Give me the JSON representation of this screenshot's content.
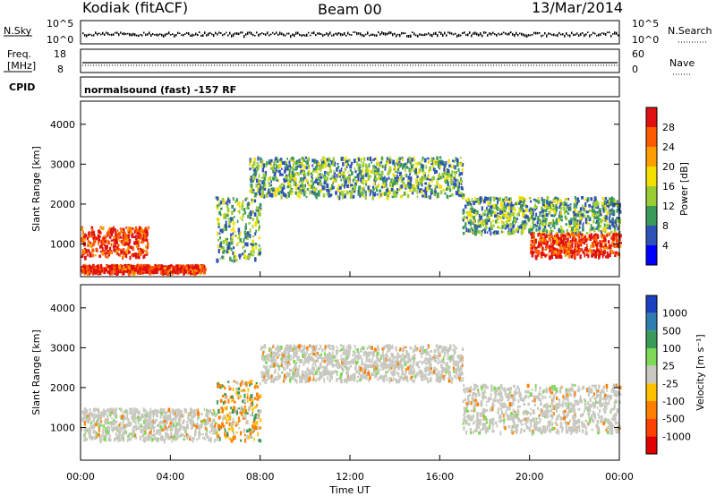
{
  "header": {
    "station": "Kodiak (fitACF)",
    "beam": "Beam 00",
    "date": "13/Mar/2014"
  },
  "top_panels": {
    "nsky_label": "N.Sky",
    "nsky_ticks": [
      "10^5",
      "10^0"
    ],
    "nsearch_label": "N.Search",
    "nsearch_ticks": [
      "10^5",
      "10^0"
    ],
    "freq_label": "Freq.",
    "freq_unit": "[MHz]",
    "freq_ticks": [
      "18",
      "8"
    ],
    "nave_label": "Nave",
    "nave_ticks": [
      "60",
      "0"
    ],
    "cpid_label": "CPID",
    "cpid_text": "normalsound (fast) -157 RF"
  },
  "chart_data": [
    {
      "type": "heatmap",
      "title": "",
      "ylabel": "Slant Range [km]",
      "ylim": [
        180,
        4580
      ],
      "yticks": [
        1000,
        2000,
        3000,
        4000
      ],
      "colorbar": {
        "label": "Power [dB]",
        "ticks": [
          "28",
          "24",
          "20",
          "16",
          "12",
          "8",
          "4"
        ],
        "colors": [
          "#e01010",
          "#ff5a00",
          "#ff9e00",
          "#f2e000",
          "#9acd32",
          "#3a9a5a",
          "#2e52b8",
          "#0000ff"
        ]
      },
      "bands": [
        {
          "t0": 0.0,
          "t1": 3.0,
          "range0": 700,
          "range1": 1450,
          "intensity": "high"
        },
        {
          "t0": 0.0,
          "t1": 5.5,
          "range0": 300,
          "range1": 500,
          "intensity": "high"
        },
        {
          "t0": 6.0,
          "t1": 8.0,
          "range0": 600,
          "range1": 2200,
          "intensity": "medium"
        },
        {
          "t0": 7.5,
          "t1": 17.0,
          "range0": 2200,
          "range1": 3200,
          "intensity": "medium"
        },
        {
          "t0": 17.0,
          "t1": 24.0,
          "range0": 1300,
          "range1": 2200,
          "intensity": "medium"
        },
        {
          "t0": 20.0,
          "t1": 24.0,
          "range0": 700,
          "range1": 1300,
          "intensity": "high"
        }
      ]
    },
    {
      "type": "heatmap",
      "title": "",
      "ylabel": "Slant Range [km]",
      "xlabel": "Time UT",
      "ylim": [
        180,
        4580
      ],
      "yticks": [
        1000,
        2000,
        3000,
        4000
      ],
      "xticks": [
        "00:00",
        "04:00",
        "08:00",
        "12:00",
        "16:00",
        "20:00",
        "00:00"
      ],
      "colorbar": {
        "label": "Velocity [m s⁻¹]",
        "ticks": [
          "1000",
          "500",
          "100",
          "25",
          "-25",
          "-100",
          "-500",
          "-1000"
        ],
        "colors": [
          "#1a3fbf",
          "#2e7fb0",
          "#3a9a5a",
          "#7ed957",
          "#c8c8c0",
          "#ffc000",
          "#ff7f00",
          "#ff4000",
          "#e00000"
        ]
      },
      "bands": [
        {
          "t0": 0.0,
          "t1": 6.0,
          "range0": 700,
          "range1": 1500,
          "intensity": "ground"
        },
        {
          "t0": 6.0,
          "t1": 8.0,
          "range0": 700,
          "range1": 2200,
          "intensity": "mixed"
        },
        {
          "t0": 8.0,
          "t1": 17.0,
          "range0": 2200,
          "range1": 3100,
          "intensity": "ground"
        },
        {
          "t0": 17.0,
          "t1": 24.0,
          "range0": 900,
          "range1": 2100,
          "intensity": "ground"
        }
      ]
    }
  ]
}
